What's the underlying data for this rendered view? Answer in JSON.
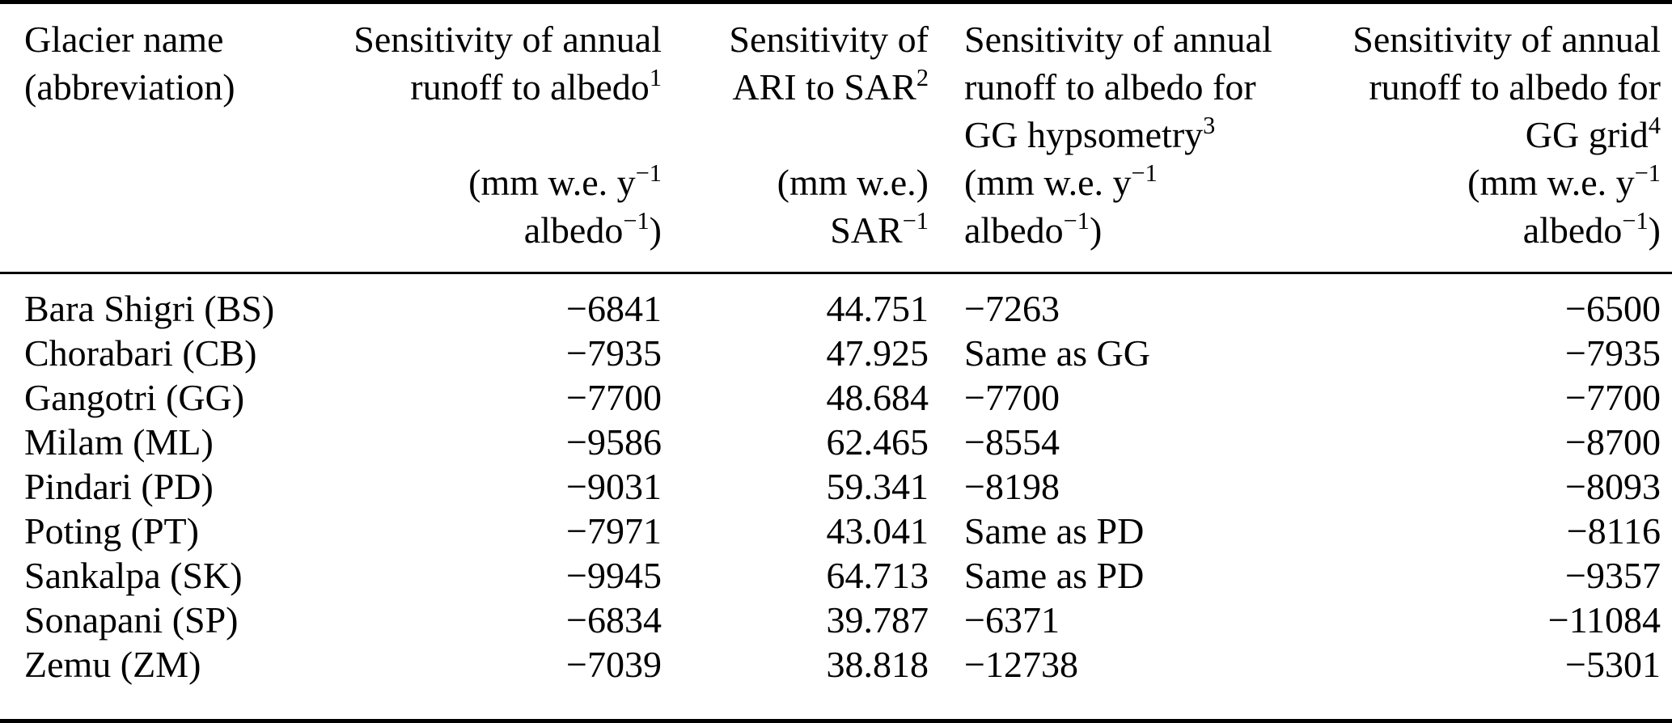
{
  "colors": {
    "background": "#ffffff",
    "text": "#000000",
    "rule": "#000000"
  },
  "table": {
    "column_keys": [
      "glacier_name",
      "sensitivity_runoff_albedo",
      "sensitivity_ari_sar",
      "sensitivity_gg_hypsometry",
      "sensitivity_gg_grid"
    ],
    "columns": [
      {
        "header_lines": [
          "Glacier name",
          "(abbreviation)",
          "",
          "",
          ""
        ]
      },
      {
        "header_lines": [
          "Sensitivity of annual",
          "runoff to albedo^{1}",
          "",
          "(mm w.e. y^{−1}",
          "albedo^{−1})"
        ]
      },
      {
        "header_lines": [
          "Sensitivity of",
          "ARI to SAR^{2}",
          "",
          "(mm w.e.)",
          "SAR^{−1}"
        ]
      },
      {
        "header_lines": [
          "Sensitivity of annual",
          "runoff to albedo for",
          "GG hypsometry^{3}",
          "(mm w.e. y^{−1}",
          "albedo^{−1})"
        ]
      },
      {
        "header_lines": [
          "Sensitivity of annual",
          "runoff to albedo for",
          "GG grid^{4}",
          "(mm w.e. y^{−1}",
          "albedo^{−1})"
        ]
      }
    ],
    "rows": [
      {
        "glacier_name": "Bara Shigri (BS)",
        "sensitivity_runoff_albedo": "−6841",
        "sensitivity_ari_sar": "44.751",
        "sensitivity_gg_hypsometry": "−7263",
        "sensitivity_gg_grid": "−6500"
      },
      {
        "glacier_name": "Chorabari (CB)",
        "sensitivity_runoff_albedo": "−7935",
        "sensitivity_ari_sar": "47.925",
        "sensitivity_gg_hypsometry": "Same as GG",
        "sensitivity_gg_grid": "−7935"
      },
      {
        "glacier_name": "Gangotri (GG)",
        "sensitivity_runoff_albedo": "−7700",
        "sensitivity_ari_sar": "48.684",
        "sensitivity_gg_hypsometry": "−7700",
        "sensitivity_gg_grid": "−7700"
      },
      {
        "glacier_name": "Milam (ML)",
        "sensitivity_runoff_albedo": "−9586",
        "sensitivity_ari_sar": "62.465",
        "sensitivity_gg_hypsometry": "−8554",
        "sensitivity_gg_grid": "−8700"
      },
      {
        "glacier_name": "Pindari (PD)",
        "sensitivity_runoff_albedo": "−9031",
        "sensitivity_ari_sar": "59.341",
        "sensitivity_gg_hypsometry": "−8198",
        "sensitivity_gg_grid": "−8093"
      },
      {
        "glacier_name": "Poting (PT)",
        "sensitivity_runoff_albedo": "−7971",
        "sensitivity_ari_sar": "43.041",
        "sensitivity_gg_hypsometry": "Same as PD",
        "sensitivity_gg_grid": "−8116"
      },
      {
        "glacier_name": "Sankalpa (SK)",
        "sensitivity_runoff_albedo": "−9945",
        "sensitivity_ari_sar": "64.713",
        "sensitivity_gg_hypsometry": "Same as PD",
        "sensitivity_gg_grid": "−9357"
      },
      {
        "glacier_name": "Sonapani (SP)",
        "sensitivity_runoff_albedo": "−6834",
        "sensitivity_ari_sar": "39.787",
        "sensitivity_gg_hypsometry": "−6371",
        "sensitivity_gg_grid": "−11084"
      },
      {
        "glacier_name": "Zemu (ZM)",
        "sensitivity_runoff_albedo": "−7039",
        "sensitivity_ari_sar": "38.818",
        "sensitivity_gg_hypsometry": "−12738",
        "sensitivity_gg_grid": "−5301"
      }
    ]
  }
}
